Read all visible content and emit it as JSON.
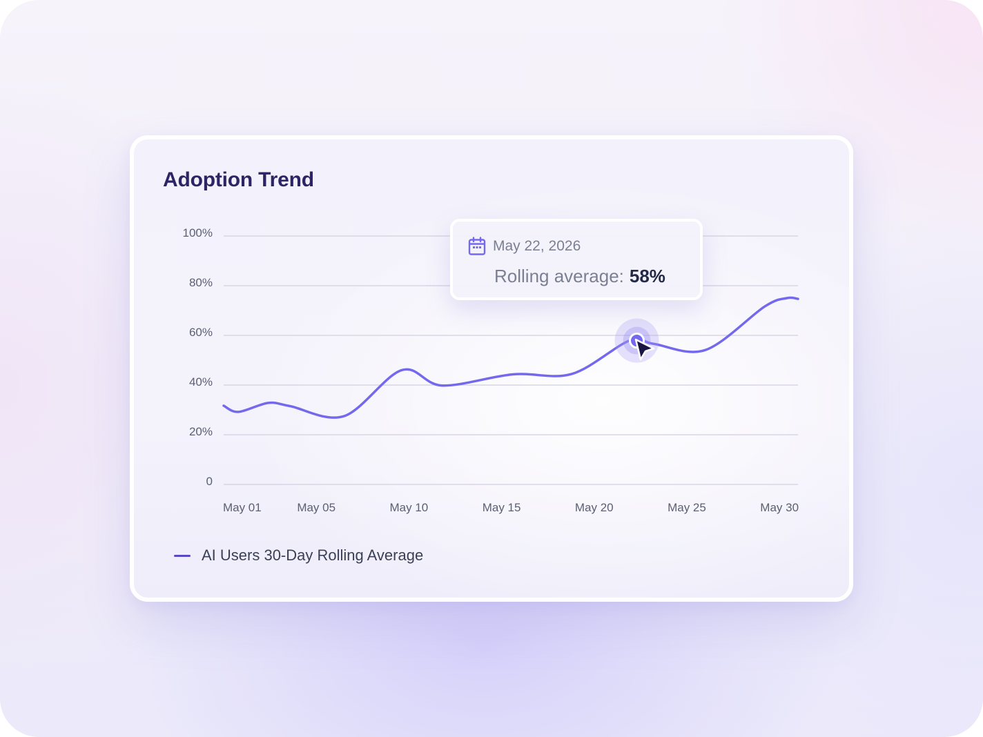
{
  "chart_data": {
    "type": "line",
    "title": "Adoption Trend",
    "xlabel": "",
    "ylabel": "",
    "x_domain": [
      0,
      31
    ],
    "ylim": [
      0,
      100
    ],
    "y_ticks": [
      {
        "value": 100,
        "label": "100%"
      },
      {
        "value": 80,
        "label": "80%"
      },
      {
        "value": 60,
        "label": "60%"
      },
      {
        "value": 40,
        "label": "40%"
      },
      {
        "value": 20,
        "label": "20%"
      },
      {
        "value": 0,
        "label": "0"
      }
    ],
    "x_ticks": [
      {
        "value": 1,
        "label": "May 01"
      },
      {
        "value": 5,
        "label": "May 05"
      },
      {
        "value": 10,
        "label": "May 10"
      },
      {
        "value": 15,
        "label": "May 15"
      },
      {
        "value": 20,
        "label": "May 20"
      },
      {
        "value": 25,
        "label": "May 25"
      },
      {
        "value": 30,
        "label": "May 30"
      }
    ],
    "grid": true,
    "legend_position": "bottom-left",
    "series": [
      {
        "name": "AI Users 30-Day Rolling Average",
        "color": "#7468ec",
        "x": [
          0,
          0.8,
          2.4,
          3.6,
          6.5,
          9.6,
          11.8,
          15.6,
          18.8,
          21.9,
          23.2,
          26.0,
          29.2,
          30.4,
          31
        ],
        "y": [
          31.7,
          29.2,
          32.8,
          31.5,
          27.5,
          46.0,
          39.8,
          44.3,
          44.5,
          57.9,
          56.6,
          54.1,
          71.6,
          75.0,
          74.7
        ]
      }
    ],
    "highlight": {
      "x": 22.3,
      "y": 57.9
    }
  },
  "tooltip": {
    "icon": "calendar-icon",
    "date": "May 22, 2026",
    "label": "Rolling average:",
    "value": "58%"
  },
  "colors": {
    "line": "#7468ec",
    "legend_swatch": "#5749c3",
    "title": "#2d2466",
    "grid": "#d7d6e4"
  }
}
